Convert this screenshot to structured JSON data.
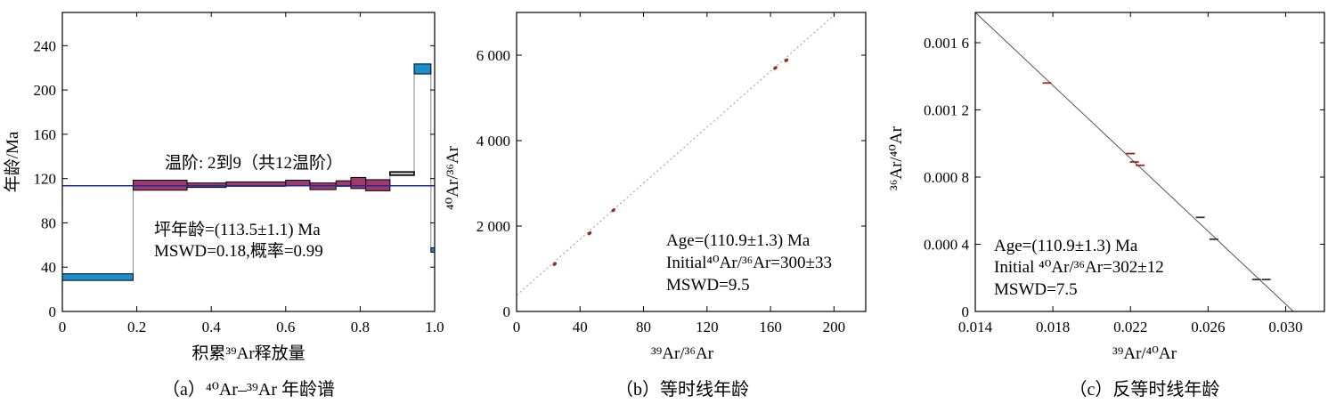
{
  "colors": {
    "steps_purple": "#a03a6e",
    "steps_blue": "#1a8fd0",
    "plateau_line": "#1f2f8a",
    "isochron_line": "#9a9a9a",
    "inverse_line": "#555555",
    "point": "#a0261c",
    "axis": "#000000"
  },
  "chart_data": [
    {
      "type": "bar",
      "subtype": "age-spectrum",
      "caption": "（a）⁴⁰Ar–³⁹Ar 年龄谱",
      "xlabel": "积累³⁹Ar释放量",
      "ylabel": "年龄/Ma",
      "xlim": [
        0,
        1.0
      ],
      "ylim": [
        0,
        270
      ],
      "xticks": [
        "0",
        "0.2",
        "0.4",
        "0.6",
        "0.8",
        "1.0"
      ],
      "xtick_values": [
        0,
        0.2,
        0.4,
        0.6,
        0.8,
        1.0
      ],
      "yticks": [
        "0",
        "40",
        "80",
        "120",
        "160",
        "200",
        "240"
      ],
      "ytick_values": [
        0,
        40,
        80,
        120,
        160,
        200,
        240
      ],
      "plateau_age": 113.5,
      "steps": [
        {
          "x0": 0.0,
          "x1": 0.19,
          "age": 31,
          "err": 3,
          "color": "blue"
        },
        {
          "x0": 0.19,
          "x1": 0.335,
          "age": 114,
          "err": 4.5,
          "color": "purple"
        },
        {
          "x0": 0.335,
          "x1": 0.44,
          "age": 114,
          "err": 2,
          "color": "purple"
        },
        {
          "x0": 0.44,
          "x1": 0.6,
          "age": 115,
          "err": 2,
          "color": "purple"
        },
        {
          "x0": 0.6,
          "x1": 0.665,
          "age": 116,
          "err": 2.5,
          "color": "purple"
        },
        {
          "x0": 0.665,
          "x1": 0.735,
          "age": 113,
          "err": 3,
          "color": "purple"
        },
        {
          "x0": 0.735,
          "x1": 0.775,
          "age": 115.5,
          "err": 2.5,
          "color": "purple"
        },
        {
          "x0": 0.775,
          "x1": 0.815,
          "age": 116,
          "err": 5,
          "color": "purple"
        },
        {
          "x0": 0.815,
          "x1": 0.88,
          "age": 114,
          "err": 5,
          "color": "purple"
        },
        {
          "x0": 0.88,
          "x1": 0.945,
          "age": 124.5,
          "err": 1.5,
          "color": "none"
        },
        {
          "x0": 0.945,
          "x1": 0.99,
          "age": 219,
          "err": 4.5,
          "color": "blue"
        },
        {
          "x0": 0.99,
          "x1": 1.0,
          "age": 55.5,
          "err": 2,
          "color": "blue"
        }
      ],
      "annotations": {
        "steps_note": "温阶: 2到9（共12温阶）",
        "plateau": "坪年龄=(113.5±1.1)  Ma",
        "mswd": "MSWD=0.18,概率=0.99"
      }
    },
    {
      "type": "scatter",
      "subtype": "isochron",
      "caption": "（b）等时线年龄",
      "xlabel": "³⁹Ar/³⁶Ar",
      "ylabel": "⁴⁰Ar/³⁶Ar",
      "xlim": [
        0,
        220
      ],
      "ylim": [
        0,
        7000
      ],
      "xticks": [
        "0",
        "40",
        "80",
        "120",
        "160",
        "200"
      ],
      "xtick_values": [
        0,
        40,
        80,
        120,
        160,
        200
      ],
      "yticks": [
        "0",
        "2 000",
        "4 000",
        "6 000"
      ],
      "ytick_values": [
        0,
        2000,
        4000,
        6000
      ],
      "line": {
        "x0": 0,
        "y0": 380,
        "x1": 202,
        "y1": 7000
      },
      "points": [
        {
          "x": 24,
          "y": 1110
        },
        {
          "x": 46,
          "y": 1830
        },
        {
          "x": 61,
          "y": 2370
        },
        {
          "x": 163,
          "y": 5700
        },
        {
          "x": 170,
          "y": 5880
        }
      ],
      "annotations": {
        "age": "Age=(110.9±1.3)  Ma",
        "initial": "Initial⁴⁰Ar/³⁶Ar=300±33",
        "mswd": "MSWD=9.5"
      }
    },
    {
      "type": "scatter",
      "subtype": "inverse-isochron",
      "caption": "（c）反等时线年龄",
      "xlabel": "³⁹Ar/⁴⁰Ar",
      "ylabel": "³⁶Ar/⁴⁰Ar",
      "xlim": [
        0.014,
        0.032
      ],
      "ylim": [
        0,
        0.00178
      ],
      "xticks": [
        "0.014",
        "0.018",
        "0.022",
        "0.026",
        "0.030"
      ],
      "xtick_values": [
        0.014,
        0.018,
        0.022,
        0.026,
        0.03
      ],
      "yticks": [
        "0",
        "0.000 4",
        "0.000 8",
        "0.001 2",
        "0.001 6"
      ],
      "ytick_values": [
        0,
        0.0004,
        0.0008,
        0.0012,
        0.0016
      ],
      "line": {
        "x0": 0.014,
        "y0": 0.00178,
        "x1": 0.0304,
        "y1": 0
      },
      "points": [
        {
          "x": 0.0177,
          "y": 0.00136
        },
        {
          "x": 0.022,
          "y": 0.00094
        },
        {
          "x": 0.0222,
          "y": 0.00089
        },
        {
          "x": 0.0225,
          "y": 0.00087
        },
        {
          "x": 0.0256,
          "y": 0.00056
        },
        {
          "x": 0.0263,
          "y": 0.00043
        },
        {
          "x": 0.0285,
          "y": 0.00019
        },
        {
          "x": 0.029,
          "y": 0.00019
        }
      ],
      "annotations": {
        "age": "Age=(110.9±1.3)  Ma",
        "initial": "Initial ⁴⁰Ar/³⁶Ar=302±12",
        "mswd": "MSWD=7.5"
      }
    }
  ]
}
